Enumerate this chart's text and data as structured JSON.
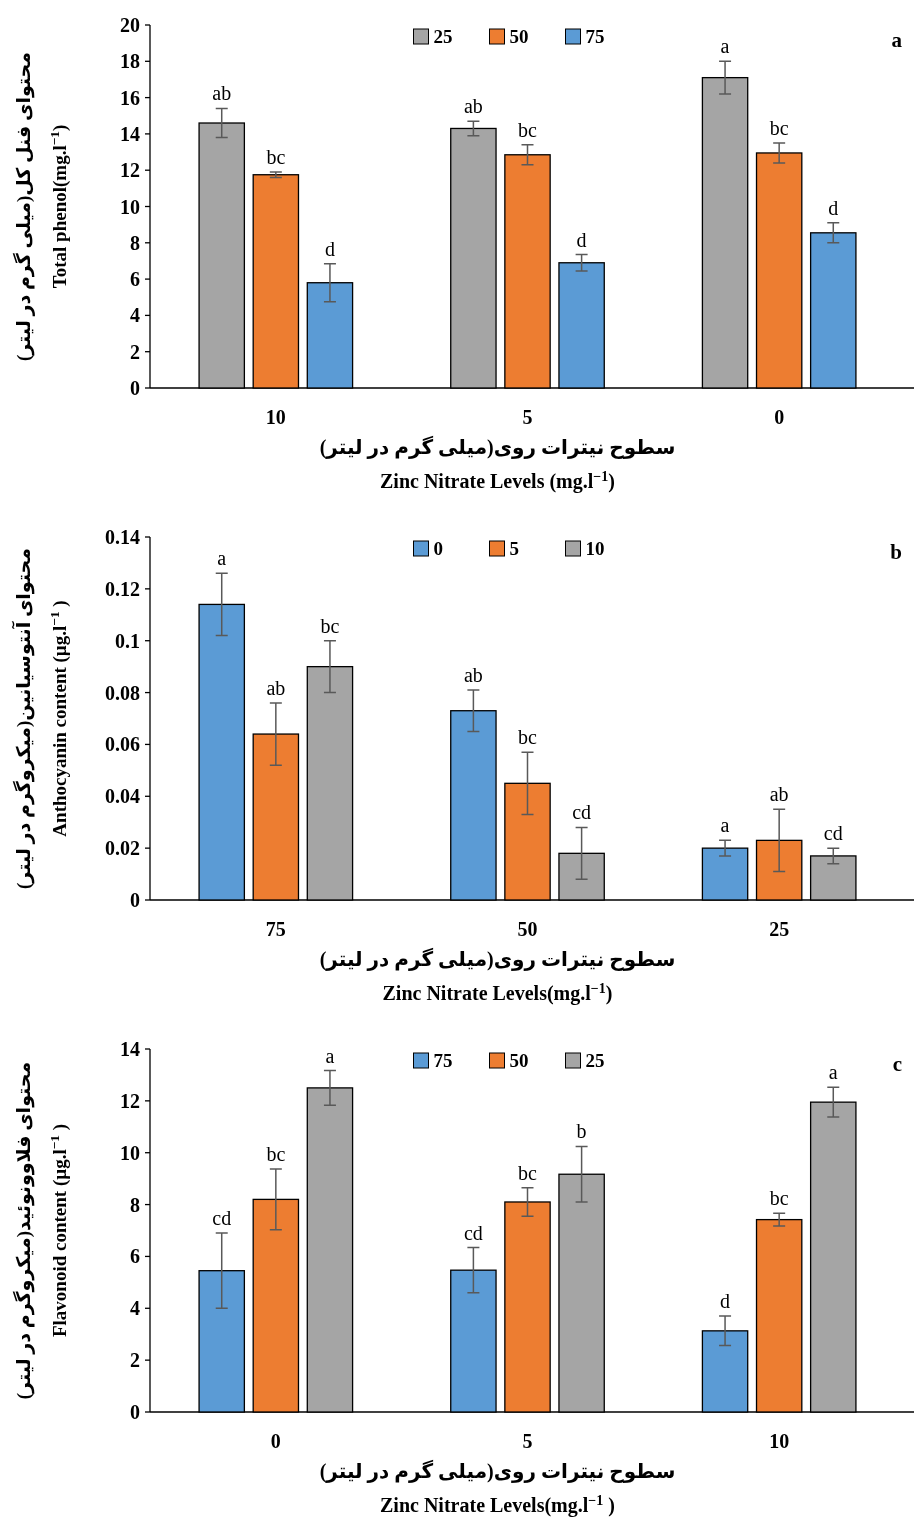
{
  "chart_data": [
    {
      "type": "bar",
      "title": null,
      "ylabel": "محتوای فنل کل(میلی گرم در لیتر)\nTotal phenol(mg.l$^{−1}$)",
      "xlabel": "سطوح نیترات روی(میلی گرم در لیتر)\nZinc Nitrate Levels (mg.l$^{−1}$)",
      "categories": [
        "10",
        "5",
        "0"
      ],
      "series": [
        {
          "name": "25",
          "color": "#a5a5a5",
          "values": [
            14.6,
            14.3,
            17.1
          ],
          "errors": [
            0.8,
            0.4,
            0.9
          ],
          "value_labels": [
            "ab",
            "ab",
            "a"
          ]
        },
        {
          "name": "50",
          "color": "#ed7d31",
          "values": [
            11.75,
            12.85,
            12.95
          ],
          "errors": [
            0.15,
            0.55,
            0.55
          ],
          "value_labels": [
            "bc",
            "bc",
            "bc"
          ]
        },
        {
          "name": "75",
          "color": "#5b9bd5",
          "values": [
            5.8,
            6.9,
            8.55
          ],
          "errors": [
            1.05,
            0.45,
            0.55
          ],
          "value_labels": [
            "d",
            "d",
            "d"
          ]
        }
      ],
      "ylim": [
        0,
        20
      ],
      "yticks": [
        0,
        2,
        4,
        6,
        8,
        10,
        12,
        14,
        16,
        18,
        20
      ],
      "legend": "top",
      "annotations": [
        "a"
      ]
    },
    {
      "type": "bar",
      "ylabel": "محتوای آنتوسیانین(میکروگرم در لیتر)\nAnthocyanin content (µg.l$^{−1}$ )",
      "xlabel": "سطوح نیترات روی(میلی گرم در لیتر)\nZinc Nitrate Levels(mg.l$^{−1}$)",
      "categories": [
        "75",
        "50",
        "25"
      ],
      "series": [
        {
          "name": "0",
          "color": "#5b9bd5",
          "values": [
            0.114,
            0.073,
            0.02
          ],
          "errors": [
            0.012,
            0.008,
            0.003
          ],
          "value_labels": [
            "a",
            "ab",
            "a"
          ]
        },
        {
          "name": "5",
          "color": "#ed7d31",
          "values": [
            0.064,
            0.045,
            0.023
          ],
          "errors": [
            0.012,
            0.012,
            0.012
          ],
          "value_labels": [
            "ab",
            "bc",
            "ab"
          ]
        },
        {
          "name": "10",
          "color": "#a5a5a5",
          "values": [
            0.09,
            0.018,
            0.017
          ],
          "errors": [
            0.01,
            0.01,
            0.003
          ],
          "value_labels": [
            "bc",
            "cd",
            "cd"
          ]
        }
      ],
      "ylim": [
        0,
        0.14
      ],
      "yticks": [
        0,
        0.02,
        0.04,
        0.06,
        0.08,
        {
          "value": 0.1,
          "label": "0.1"
        },
        0.12,
        0.14
      ],
      "legend": "top",
      "annotations": [
        "b"
      ]
    },
    {
      "type": "bar",
      "ylabel": "محتوای فلاوونوئید(میکروگرم در لیتر)\nFlavonoid content (µg.l$^{−1}$ )",
      "xlabel": "سطوح نیترات روی(میلی گرم در لیتر)\nZinc Nitrate Levels(mg.l$^{−1}$ )",
      "categories": [
        "0",
        "5",
        "10"
      ],
      "series": [
        {
          "name": "75",
          "color": "#5b9bd5",
          "values": [
            5.45,
            5.47,
            3.13
          ],
          "errors": [
            1.45,
            0.87,
            0.57
          ],
          "value_labels": [
            "cd",
            "cd",
            "d"
          ]
        },
        {
          "name": "50",
          "color": "#ed7d31",
          "values": [
            8.2,
            8.1,
            7.42
          ],
          "errors": [
            1.17,
            0.55,
            0.25
          ],
          "value_labels": [
            "bc",
            "bc",
            "bc"
          ]
        },
        {
          "name": "25",
          "color": "#a5a5a5",
          "values": [
            12.5,
            9.17,
            11.95
          ],
          "errors": [
            0.67,
            1.07,
            0.57
          ],
          "value_labels": [
            "a",
            "b",
            "a"
          ]
        }
      ],
      "ylim": [
        0,
        14
      ],
      "yticks": [
        0,
        2,
        4,
        6,
        8,
        10,
        12,
        14
      ],
      "legend": "top",
      "annotations": [
        "c"
      ]
    }
  ]
}
